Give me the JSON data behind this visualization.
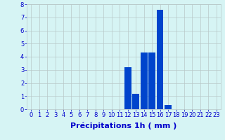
{
  "hours": [
    0,
    1,
    2,
    3,
    4,
    5,
    6,
    7,
    8,
    9,
    10,
    11,
    12,
    13,
    14,
    15,
    16,
    17,
    18,
    19,
    20,
    21,
    22,
    23
  ],
  "values": [
    0,
    0,
    0,
    0,
    0,
    0,
    0,
    0,
    0,
    0,
    0,
    0,
    3.2,
    1.2,
    4.3,
    4.3,
    7.6,
    0.3,
    0,
    0,
    0,
    0,
    0,
    0
  ],
  "bar_color": "#0044cc",
  "background_color": "#d6f4f4",
  "grid_color": "#b8c8c8",
  "xlabel": "Précipitations 1h ( mm )",
  "xlabel_color": "#0000cc",
  "xlabel_fontsize": 8,
  "tick_color": "#0000cc",
  "tick_fontsize": 6,
  "ylim": [
    0,
    8
  ],
  "yticks": [
    0,
    1,
    2,
    3,
    4,
    5,
    6,
    7,
    8
  ],
  "xlim": [
    -0.5,
    23.5
  ]
}
